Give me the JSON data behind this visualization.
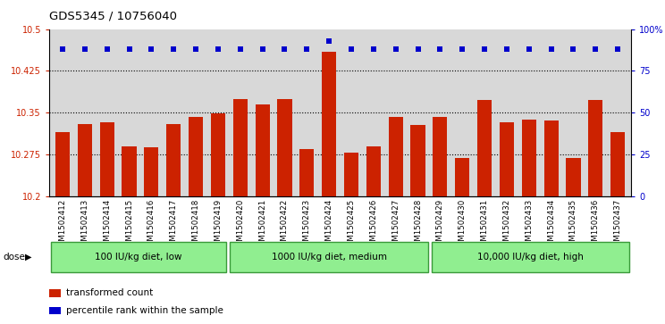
{
  "title": "GDS5345 / 10756040",
  "samples": [
    "GSM1502412",
    "GSM1502413",
    "GSM1502414",
    "GSM1502415",
    "GSM1502416",
    "GSM1502417",
    "GSM1502418",
    "GSM1502419",
    "GSM1502420",
    "GSM1502421",
    "GSM1502422",
    "GSM1502423",
    "GSM1502424",
    "GSM1502425",
    "GSM1502426",
    "GSM1502427",
    "GSM1502428",
    "GSM1502429",
    "GSM1502430",
    "GSM1502431",
    "GSM1502432",
    "GSM1502433",
    "GSM1502434",
    "GSM1502435",
    "GSM1502436",
    "GSM1502437"
  ],
  "bar_values": [
    10.315,
    10.33,
    10.332,
    10.29,
    10.288,
    10.33,
    10.342,
    10.348,
    10.375,
    10.365,
    10.375,
    10.285,
    10.46,
    10.278,
    10.29,
    10.342,
    10.328,
    10.342,
    10.268,
    10.372,
    10.332,
    10.338,
    10.335,
    10.268,
    10.372,
    10.315
  ],
  "percentile_values": [
    88,
    88,
    88,
    88,
    88,
    88,
    88,
    88,
    88,
    88,
    88,
    88,
    93,
    88,
    88,
    88,
    88,
    88,
    88,
    88,
    88,
    88,
    88,
    88,
    88,
    88
  ],
  "bar_color": "#cc2200",
  "percentile_color": "#0000cc",
  "ylim_left": [
    10.2,
    10.5
  ],
  "ylim_right": [
    0,
    100
  ],
  "yticks_left": [
    10.2,
    10.275,
    10.35,
    10.425,
    10.5
  ],
  "ytick_labels_left": [
    "10.2",
    "10.275",
    "10.35",
    "10.425",
    "10.5"
  ],
  "yticks_right": [
    0,
    25,
    50,
    75,
    100
  ],
  "ytick_labels_right": [
    "0",
    "25",
    "50",
    "75",
    "100%"
  ],
  "groups": [
    {
      "label": "100 IU/kg diet, low",
      "start": 0,
      "end": 8
    },
    {
      "label": "1000 IU/kg diet, medium",
      "start": 8,
      "end": 17
    },
    {
      "label": "10,000 IU/kg diet, high",
      "start": 17,
      "end": 26
    }
  ],
  "group_color": "#90ee90",
  "group_border_color": "#3a9a3a",
  "plot_bg_color": "#d8d8d8",
  "fig_bg_color": "#ffffff",
  "legend_items": [
    {
      "label": "transformed count",
      "color": "#cc2200"
    },
    {
      "label": "percentile rank within the sample",
      "color": "#0000cc"
    }
  ],
  "dose_label": "dose"
}
